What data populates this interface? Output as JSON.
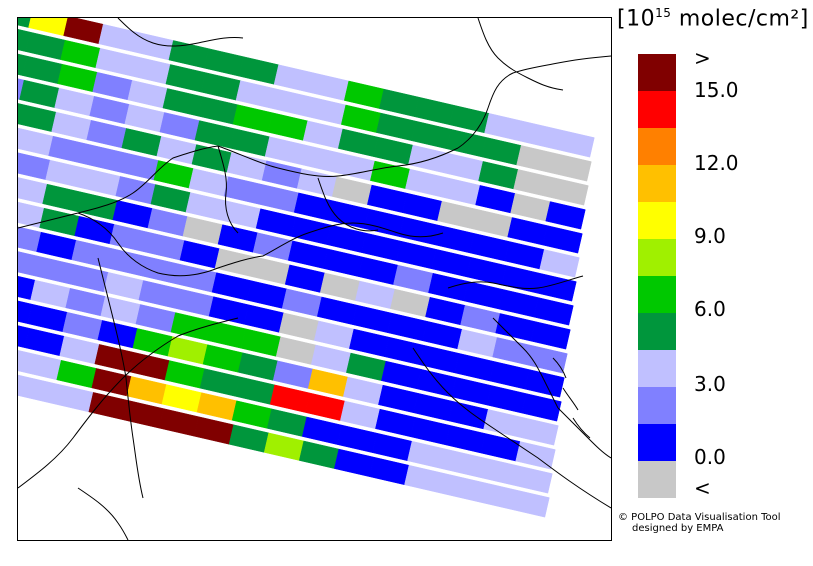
{
  "legend": {
    "title_prefix": "[10",
    "title_exp": "15",
    "title_suffix": " molec/cm²]",
    "colors": [
      "#800000",
      "#ff0000",
      "#ff8000",
      "#ffc000",
      "#ffff00",
      "#a0f000",
      "#00c800",
      "#00963c",
      "#c0c0ff",
      "#8080ff",
      "#0000ff",
      "#c8c8c8"
    ],
    "labels": [
      ">",
      "15.0",
      "12.0",
      "9.0",
      "6.0",
      "3.0",
      "0.0",
      "<"
    ]
  },
  "credit": {
    "line1": "© POLPO Data Visualisation Tool",
    "line2": "designed by EMPA"
  },
  "map": {
    "swaths": [
      [
        "dark-green",
        "yellow",
        "dark-red",
        "lavender",
        "lavender",
        "dark-green",
        "dark-green",
        "dark-green",
        "lavender",
        "lavender",
        "green",
        "dark-green",
        "dark-green",
        "dark-green",
        "lavender",
        "lavender",
        "lavender"
      ],
      [
        "dark-green",
        "dark-green",
        "green",
        "lavender",
        "lavender",
        "dark-green",
        "dark-green",
        "lavender",
        "lavender",
        "lavender",
        "green",
        "dark-green",
        "dark-green",
        "dark-green",
        "dark-green",
        "grey",
        "grey"
      ],
      [
        "dark-green",
        "dark-green",
        "green",
        "periwinkle",
        "lavender",
        "dark-green",
        "dark-green",
        "green",
        "green",
        "lavender",
        "dark-green",
        "dark-green",
        "lavender",
        "lavender",
        "dark-green",
        "grey",
        "grey"
      ],
      [
        "periwinkle",
        "dark-green",
        "lavender",
        "periwinkle",
        "lavender",
        "periwinkle",
        "dark-green",
        "dark-green",
        "lavender",
        "lavender",
        "lavender",
        "green",
        "lavender",
        "lavender",
        "blue",
        "grey",
        "blue"
      ],
      [
        "dark-green",
        "dark-green",
        "lavender",
        "periwinkle",
        "dark-green",
        "lavender",
        "dark-green",
        "lavender",
        "periwinkle",
        "lavender",
        "grey",
        "blue",
        "blue",
        "grey",
        "grey",
        "blue",
        "blue"
      ],
      [
        "lavender",
        "lavender",
        "periwinkle",
        "periwinkle",
        "periwinkle",
        "green",
        "lavender",
        "periwinkle",
        "periwinkle",
        "blue",
        "blue",
        "blue",
        "blue",
        "blue",
        "blue",
        "blue",
        "lavender"
      ],
      [
        "lavender",
        "periwinkle",
        "lavender",
        "lavender",
        "periwinkle",
        "dark-green",
        "lavender",
        "lavender",
        "blue",
        "blue",
        "blue",
        "blue",
        "blue",
        "blue",
        "blue",
        "blue",
        "blue"
      ],
      [
        "lavender",
        "lavender",
        "dark-green",
        "dark-green",
        "blue",
        "periwinkle",
        "grey",
        "blue",
        "periwinkle",
        "blue",
        "blue",
        "blue",
        "periwinkle",
        "blue",
        "blue",
        "blue",
        "blue"
      ],
      [
        "periwinkle",
        "lavender",
        "dark-green",
        "blue",
        "periwinkle",
        "periwinkle",
        "blue",
        "grey",
        "grey",
        "blue",
        "grey",
        "lavender",
        "grey",
        "blue",
        "periwinkle",
        "blue",
        "blue"
      ],
      [
        "lavender",
        "periwinkle",
        "blue",
        "periwinkle",
        "periwinkle",
        "periwinkle",
        "periwinkle",
        "blue",
        "blue",
        "periwinkle",
        "blue",
        "blue",
        "blue",
        "blue",
        "lavender",
        "periwinkle",
        "periwinkle"
      ],
      [
        "blue",
        "periwinkle",
        "periwinkle",
        "periwinkle",
        "lavender",
        "periwinkle",
        "periwinkle",
        "blue",
        "blue",
        "grey",
        "lavender",
        "blue",
        "blue",
        "blue",
        "blue",
        "blue",
        "blue"
      ],
      [
        "green",
        "blue",
        "lavender",
        "periwinkle",
        "lavender",
        "periwinkle",
        "green",
        "green",
        "green",
        "grey",
        "lavender",
        "dark-green",
        "blue",
        "blue",
        "blue",
        "blue",
        "blue"
      ],
      [
        "blue",
        "blue",
        "blue",
        "periwinkle",
        "blue",
        "green",
        "lime",
        "green",
        "dark-green",
        "periwinkle",
        "orange-yellow",
        "lavender",
        "blue",
        "blue",
        "blue",
        "lavender",
        "lavender"
      ],
      [
        "blue",
        "blue",
        "blue",
        "lavender",
        "dark-red",
        "dark-red",
        "green",
        "dark-green",
        "dark-green",
        "red",
        "red",
        "lavender",
        "blue",
        "blue",
        "blue",
        "blue",
        "lavender"
      ],
      [
        "lavender",
        "lavender",
        "lavender",
        "green",
        "dark-red",
        "orange-yellow",
        "yellow",
        "orange-yellow",
        "green",
        "dark-green",
        "blue",
        "blue",
        "blue",
        "lavender",
        "lavender",
        "lavender",
        "lavender"
      ],
      [
        "lavender",
        "lavender",
        "lavender",
        "lavender",
        "dark-red",
        "dark-red",
        "dark-red",
        "dark-red",
        "dark-green",
        "lime",
        "dark-green",
        "blue",
        "blue",
        "lavender",
        "lavender",
        "lavender",
        "lavender"
      ]
    ]
  }
}
